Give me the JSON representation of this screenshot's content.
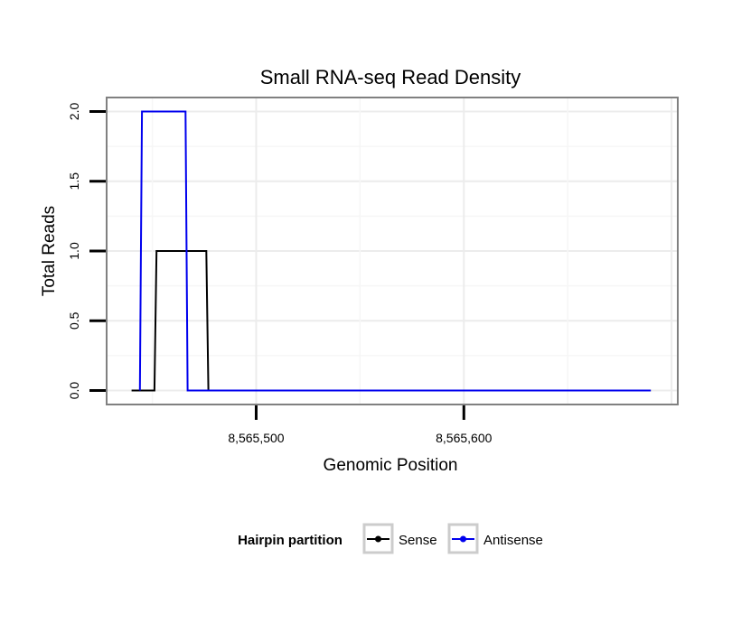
{
  "chart_data": {
    "type": "line",
    "title": "Small RNA-seq Read Density",
    "xlabel": "Genomic Position",
    "ylabel": "Total Reads",
    "xlim": [
      8565428,
      8565703
    ],
    "ylim": [
      -0.1,
      2.1
    ],
    "x_ticks": [
      8565500,
      8565600
    ],
    "x_tick_labels": [
      "8,565,500",
      "8,565,600"
    ],
    "y_ticks": [
      0,
      0.5,
      1,
      1.5,
      2
    ],
    "y_tick_labels": [
      "0.0",
      "0.5",
      "1.0",
      "1.5",
      "2.0"
    ],
    "grid": true,
    "legend": {
      "title": "Hairpin partition",
      "position": "bottom"
    },
    "series": [
      {
        "name": "Sense",
        "color": "#000000",
        "x": [
          8565440,
          8565451,
          8565452,
          8565476,
          8565477,
          8565690
        ],
        "y": [
          0,
          0,
          1,
          1,
          0,
          0
        ]
      },
      {
        "name": "Antisense",
        "color": "#0000ee",
        "x": [
          8565444,
          8565445,
          8565466,
          8565467,
          8565690
        ],
        "y": [
          0,
          2,
          2,
          0,
          0
        ]
      }
    ]
  }
}
